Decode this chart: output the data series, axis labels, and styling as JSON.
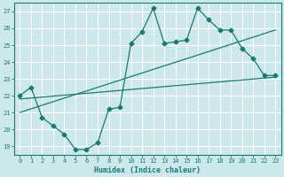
{
  "xlabel": "Humidex (Indice chaleur)",
  "bg_color": "#cce8ec",
  "grid_color": "#ffffff",
  "line_color": "#1a7a6e",
  "xlim": [
    -0.5,
    23.5
  ],
  "ylim": [
    18.5,
    27.5
  ],
  "yticks": [
    19,
    20,
    21,
    22,
    23,
    24,
    25,
    26,
    27
  ],
  "xticks": [
    0,
    1,
    2,
    3,
    4,
    5,
    6,
    7,
    8,
    9,
    10,
    11,
    12,
    13,
    14,
    15,
    16,
    17,
    18,
    19,
    20,
    21,
    22,
    23
  ],
  "main_x": [
    0,
    1,
    2,
    3,
    4,
    5,
    6,
    7,
    8,
    9,
    10,
    11,
    12,
    13,
    14,
    15,
    16,
    17,
    18,
    19,
    20,
    21,
    22,
    23
  ],
  "main_y": [
    22.0,
    22.5,
    20.7,
    20.2,
    19.7,
    18.8,
    18.8,
    19.2,
    21.2,
    21.3,
    25.1,
    25.8,
    27.2,
    25.1,
    25.2,
    25.3,
    27.2,
    26.5,
    25.9,
    25.9,
    24.8,
    24.2,
    23.2,
    23.2
  ],
  "trend1_x": [
    0,
    23
  ],
  "trend1_y": [
    21.8,
    23.1
  ],
  "trend2_x": [
    0,
    23
  ],
  "trend2_y": [
    21.0,
    25.9
  ]
}
